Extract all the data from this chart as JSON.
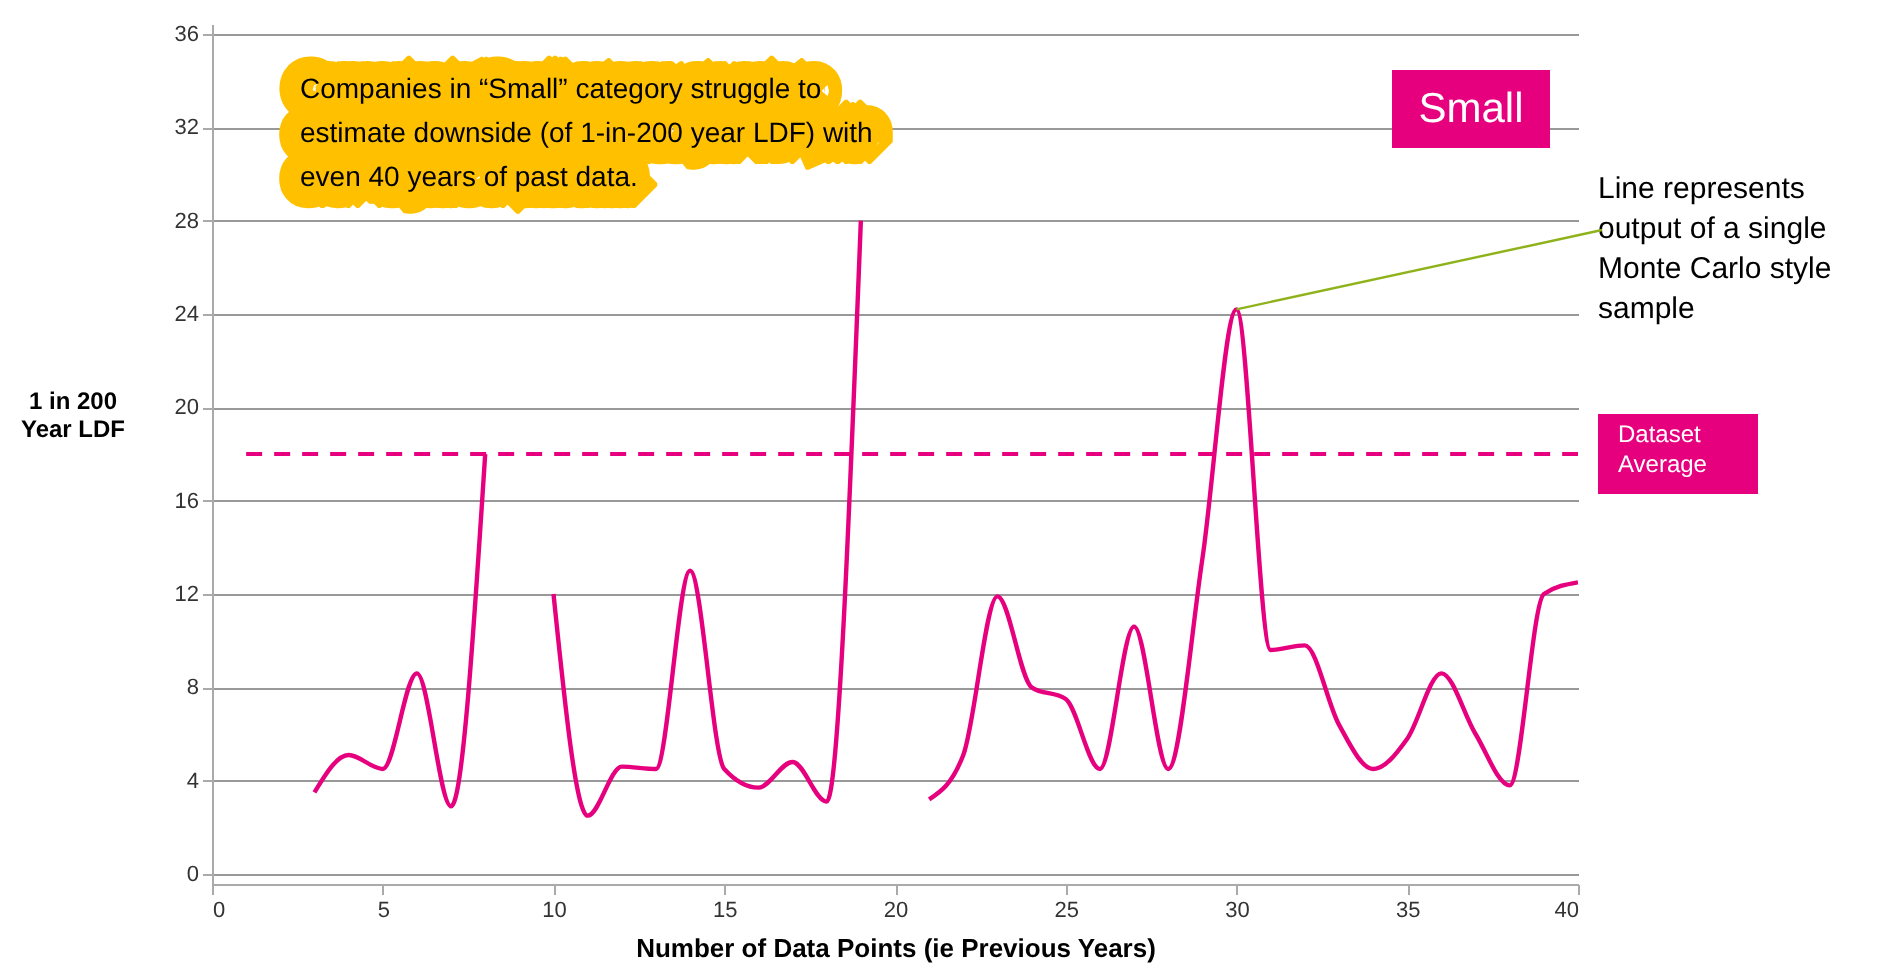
{
  "chart_data": {
    "type": "line",
    "xlabel": "Number of Data Points  (ie Previous Years)",
    "ylabel": "1 in 200\nYear LDF",
    "x": [
      3,
      4,
      5,
      6,
      7,
      8,
      9,
      10,
      11,
      12,
      13,
      14,
      15,
      16,
      17,
      18,
      19,
      20,
      21,
      22,
      23,
      24,
      25,
      26,
      27,
      28,
      29,
      30,
      31,
      32,
      33,
      34,
      35,
      36,
      37,
      38,
      39,
      40
    ],
    "series": [
      {
        "color": "#e6007e",
        "values": [
          3.5,
          5.1,
          4.5,
          8.6,
          2.9,
          18,
          null,
          12,
          2.5,
          4.6,
          4.5,
          13,
          4.5,
          3.7,
          4.8,
          3.1,
          28,
          null,
          3.2,
          5.1,
          11.9,
          8,
          7.5,
          4.5,
          10.6,
          4.5,
          13.5,
          24.2,
          9.6,
          9.8,
          6.4,
          4.5,
          5.8,
          8.6,
          6,
          3.8,
          12,
          12.5
        ]
      }
    ],
    "xlim": [
      0,
      40
    ],
    "xticks": [
      0,
      5,
      10,
      15,
      20,
      25,
      30,
      35,
      40
    ],
    "ylim": [
      0,
      36
    ],
    "yticks": [
      0,
      4,
      8,
      12,
      16,
      20,
      24,
      28,
      32,
      36
    ],
    "grid": "y",
    "line_style": "solid",
    "marker": "none",
    "ref_lines": [
      {
        "axis": "y",
        "value": 18,
        "label": "Dataset\nAverage",
        "color": "#e6007e",
        "line_style": "dashed"
      }
    ],
    "annotations": [
      "Companies in “Small” category struggle to\nestimate downside (of 1-in-200 year LDF) with\neven 40 years of past data.",
      "Small",
      {
        "text": "Line represents\noutput of a single\nMonte Carlo style\nsample",
        "x": 30,
        "y": 24.2
      }
    ]
  }
}
